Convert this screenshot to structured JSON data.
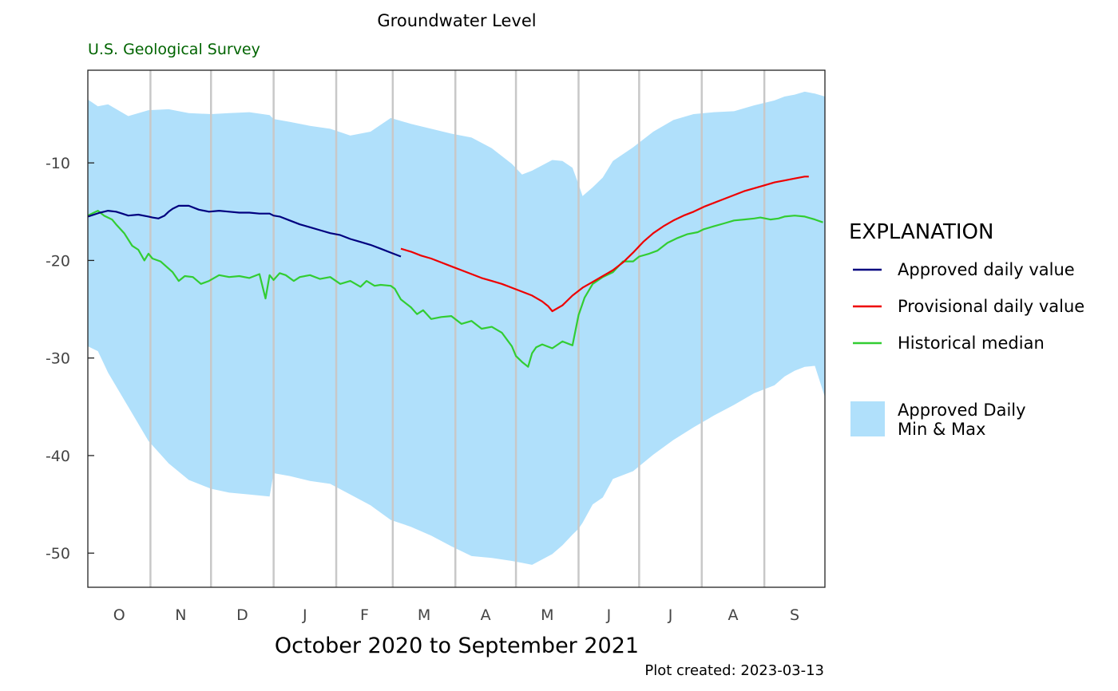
{
  "chart_data": {
    "type": "line",
    "title": "Groundwater Level",
    "agency": "U.S. Geological Survey",
    "xlabel": "October 2020 to September 2021",
    "footer": "Plot created: 2023-03-13",
    "ylim": [
      -53.5,
      -0.5
    ],
    "y_ticks": [
      -10,
      -20,
      -30,
      -40,
      -50
    ],
    "y_tick_labels": [
      "-10",
      "-20",
      "-30",
      "-40",
      "-50"
    ],
    "month_labels": [
      "O",
      "N",
      "D",
      "J",
      "F",
      "M",
      "A",
      "M",
      "J",
      "J",
      "A",
      "S"
    ],
    "month_start_days": [
      0,
      31,
      61,
      92,
      123,
      151,
      182,
      212,
      243,
      273,
      304,
      335,
      365
    ],
    "grid": "vertical lines at month boundaries",
    "legend": {
      "title": "EXPLANATION",
      "position": "right",
      "entries": [
        {
          "label": "Approved daily value",
          "color": "#00007f",
          "kind": "line"
        },
        {
          "label": "Provisional daily value",
          "color": "#ee0000",
          "kind": "line"
        },
        {
          "label": "Historical median",
          "color": "#32cd32",
          "kind": "line"
        },
        {
          "label": "Approved Daily Min & Max",
          "color": "#b0e0fb",
          "kind": "band"
        }
      ]
    },
    "colors": {
      "approved": "#00007f",
      "provisional": "#ee0000",
      "median": "#32cd32",
      "band": "#b0e0fb",
      "grid": "#c8c8c8"
    },
    "series": [
      {
        "name": "Historical median",
        "x": [
          0,
          3,
          5,
          8,
          12,
          14,
          18,
          22,
          25,
          28,
          30,
          32,
          36,
          42,
          45,
          48,
          52,
          56,
          60,
          65,
          70,
          75,
          80,
          85,
          88,
          90,
          92,
          95,
          98,
          102,
          105,
          110,
          115,
          120,
          125,
          130,
          135,
          138,
          142,
          145,
          150,
          152,
          155,
          160,
          163,
          166,
          170,
          175,
          180,
          185,
          190,
          195,
          200,
          205,
          210,
          212,
          215,
          218,
          220,
          222,
          225,
          230,
          235,
          240,
          243,
          246,
          250,
          255,
          260,
          265,
          270,
          273,
          278,
          282,
          287,
          292,
          297,
          302,
          305,
          310,
          315,
          320,
          325,
          330,
          333,
          338,
          342,
          345,
          350,
          355,
          360,
          364
        ],
        "y": [
          -15.4,
          -15.1,
          -14.9,
          -15.4,
          -15.8,
          -16.3,
          -17.2,
          -18.5,
          -18.9,
          -20.0,
          -19.3,
          -19.8,
          -20.1,
          -21.2,
          -22.1,
          -21.6,
          -21.7,
          -22.4,
          -22.1,
          -21.5,
          -21.7,
          -21.6,
          -21.8,
          -21.4,
          -23.9,
          -21.5,
          -22.0,
          -21.3,
          -21.5,
          -22.1,
          -21.7,
          -21.5,
          -21.9,
          -21.7,
          -22.4,
          -22.1,
          -22.7,
          -22.1,
          -22.6,
          -22.5,
          -22.6,
          -22.9,
          -24.0,
          -24.8,
          -25.5,
          -25.1,
          -26.0,
          -25.8,
          -25.7,
          -26.5,
          -26.2,
          -27.0,
          -26.8,
          -27.4,
          -28.8,
          -29.8,
          -30.4,
          -30.9,
          -29.5,
          -28.9,
          -28.6,
          -29.0,
          -28.3,
          -28.7,
          -25.6,
          -23.8,
          -22.4,
          -21.7,
          -21.2,
          -20.1,
          -20.1,
          -19.6,
          -19.3,
          -19.0,
          -18.2,
          -17.7,
          -17.3,
          -17.1,
          -16.8,
          -16.5,
          -16.2,
          -15.9,
          -15.8,
          -15.7,
          -15.6,
          -15.8,
          -15.7,
          -15.5,
          -15.4,
          -15.5,
          -15.8,
          -16.1
        ]
      },
      {
        "name": "Approved daily value",
        "x": [
          0,
          3,
          6,
          10,
          14,
          17,
          20,
          25,
          30,
          32,
          35,
          38,
          40,
          42,
          45,
          50,
          55,
          60,
          65,
          70,
          75,
          80,
          85,
          90,
          92,
          95,
          100,
          105,
          110,
          115,
          120,
          125,
          130,
          135,
          140,
          145,
          150,
          155
        ],
        "y": [
          -15.5,
          -15.3,
          -15.1,
          -14.9,
          -15.0,
          -15.2,
          -15.4,
          -15.3,
          -15.5,
          -15.6,
          -15.7,
          -15.4,
          -15.0,
          -14.7,
          -14.4,
          -14.4,
          -14.8,
          -15.0,
          -14.9,
          -15.0,
          -15.1,
          -15.1,
          -15.2,
          -15.2,
          -15.4,
          -15.5,
          -15.9,
          -16.3,
          -16.6,
          -16.9,
          -17.2,
          -17.4,
          -17.8,
          -18.1,
          -18.4,
          -18.8,
          -19.2,
          -19.6
        ]
      },
      {
        "name": "Provisional daily value",
        "x": [
          155,
          160,
          165,
          170,
          175,
          180,
          185,
          190,
          195,
          200,
          205,
          210,
          215,
          220,
          225,
          228,
          230,
          235,
          240,
          245,
          250,
          255,
          260,
          265,
          270,
          275,
          280,
          285,
          290,
          295,
          300,
          305,
          310,
          315,
          320,
          325,
          330,
          335,
          340,
          345,
          350,
          355,
          357
        ],
        "y": [
          -18.8,
          -19.1,
          -19.5,
          -19.8,
          -20.2,
          -20.6,
          -21.0,
          -21.4,
          -21.8,
          -22.1,
          -22.4,
          -22.8,
          -23.2,
          -23.6,
          -24.2,
          -24.7,
          -25.2,
          -24.6,
          -23.6,
          -22.8,
          -22.2,
          -21.6,
          -21.0,
          -20.2,
          -19.2,
          -18.1,
          -17.2,
          -16.5,
          -15.9,
          -15.4,
          -15.0,
          -14.5,
          -14.1,
          -13.7,
          -13.3,
          -12.9,
          -12.6,
          -12.3,
          -12.0,
          -11.8,
          -11.6,
          -11.4,
          -11.4
        ]
      },
      {
        "name": "Approved Daily Min & Max",
        "x": [
          0,
          5,
          10,
          20,
          30,
          40,
          50,
          61,
          70,
          80,
          90,
          92,
          100,
          110,
          120,
          130,
          140,
          150,
          160,
          170,
          180,
          190,
          200,
          210,
          215,
          220,
          230,
          235,
          240,
          243,
          245,
          250,
          255,
          260,
          270,
          280,
          290,
          300,
          310,
          320,
          330,
          340,
          345,
          350,
          355,
          360,
          365
        ],
        "max": [
          -3.5,
          -4.2,
          -4.0,
          -5.2,
          -4.6,
          -4.5,
          -4.9,
          -5.0,
          -4.9,
          -4.8,
          -5.1,
          -5.5,
          -5.8,
          -6.2,
          -6.5,
          -7.2,
          -6.8,
          -5.4,
          -6.0,
          -6.5,
          -7.0,
          -7.4,
          -8.5,
          -10.1,
          -11.2,
          -10.8,
          -9.7,
          -9.8,
          -10.5,
          -12.2,
          -13.4,
          -12.5,
          -11.5,
          -9.8,
          -8.4,
          -6.8,
          -5.6,
          -5.0,
          -4.8,
          -4.7,
          -4.1,
          -3.6,
          -3.2,
          -3.0,
          -2.7,
          -2.9,
          -3.2
        ],
        "min": [
          -28.8,
          -29.3,
          -31.5,
          -35.0,
          -38.5,
          -40.8,
          -42.5,
          -43.4,
          -43.8,
          -44.0,
          -44.2,
          -41.8,
          -42.1,
          -42.6,
          -42.9,
          -44.0,
          -45.1,
          -46.6,
          -47.3,
          -48.2,
          -49.3,
          -50.3,
          -50.5,
          -50.8,
          -51.0,
          -51.2,
          -50.1,
          -49.2,
          -48.1,
          -47.5,
          -46.9,
          -45.0,
          -44.3,
          -42.4,
          -41.6,
          -39.9,
          -38.4,
          -37.1,
          -35.9,
          -34.8,
          -33.6,
          -32.8,
          -31.9,
          -31.3,
          -30.9,
          -30.8,
          -34.0
        ]
      }
    ]
  }
}
